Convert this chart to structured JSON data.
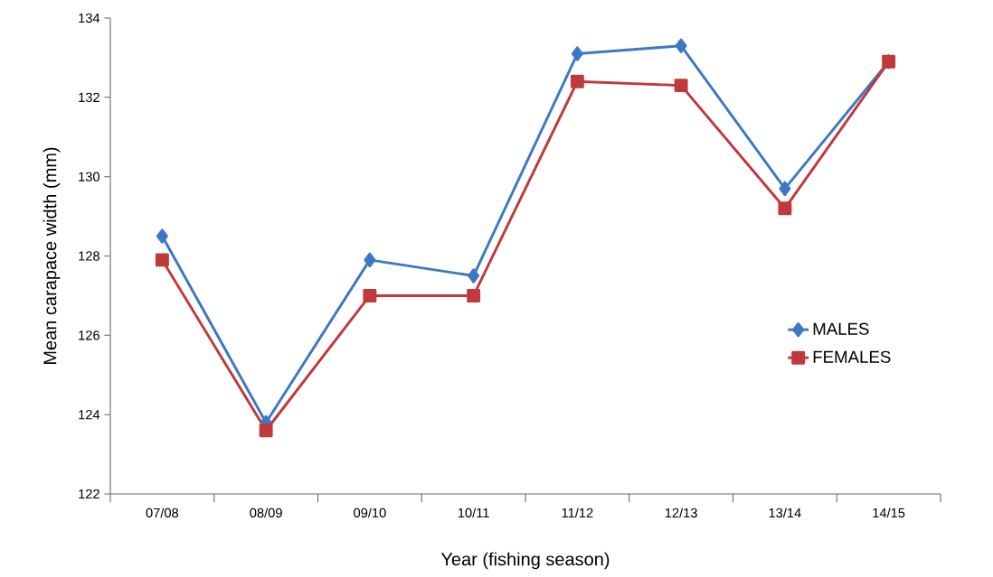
{
  "chart_data": {
    "type": "line",
    "xlabel": "Year (fishing season)",
    "ylabel": "Mean carapace width (mm)",
    "categories": [
      "07/08",
      "08/09",
      "09/10",
      "10/11",
      "11/12",
      "12/13",
      "13/14",
      "14/15"
    ],
    "series": [
      {
        "name": "MALES",
        "color": "#3c78c3",
        "marker": "diamond",
        "values": [
          128.5,
          123.8,
          127.9,
          127.5,
          133.1,
          133.3,
          129.7,
          132.9
        ]
      },
      {
        "name": "FEMALES",
        "color": "#c0393b",
        "marker": "square",
        "values": [
          127.9,
          123.6,
          127.0,
          127.0,
          132.4,
          132.3,
          129.2,
          132.9
        ]
      }
    ],
    "ylim": [
      122,
      134
    ],
    "yticks": [
      122,
      124,
      126,
      128,
      130,
      132,
      134
    ],
    "grid": false,
    "legend": "right",
    "line_style": "solid"
  }
}
